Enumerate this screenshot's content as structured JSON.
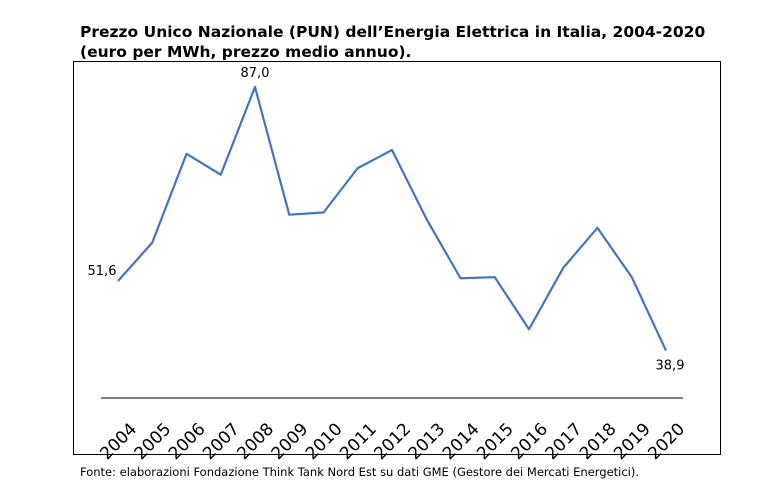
{
  "chart_data": {
    "type": "line",
    "title": "Prezzo Unico Nazionale (PUN) dell’Energia Elettrica in Italia, 2004-2020 (euro per MWh, prezzo medio annuo).",
    "categories": [
      "2004",
      "2005",
      "2006",
      "2007",
      "2008",
      "2009",
      "2010",
      "2011",
      "2012",
      "2013",
      "2014",
      "2015",
      "2016",
      "2017",
      "2018",
      "2019",
      "2020"
    ],
    "series": [
      {
        "name": "PUN",
        "color": "#4472C4",
        "values": [
          51.6,
          58.6,
          74.8,
          71.0,
          87.0,
          63.7,
          64.1,
          72.2,
          75.5,
          63.0,
          52.1,
          52.3,
          42.8,
          54.0,
          61.3,
          52.3,
          38.9
        ]
      }
    ],
    "data_labels": {
      "0": "51,6",
      "4": "87,0",
      "16": "38,9"
    },
    "xlabel": "",
    "ylabel": "",
    "grid": false,
    "legend": "none"
  },
  "footer": "Fonte: elaborazioni Fondazione Think Tank Nord Est su dati GME (Gestore dei Mercati Energetici)."
}
